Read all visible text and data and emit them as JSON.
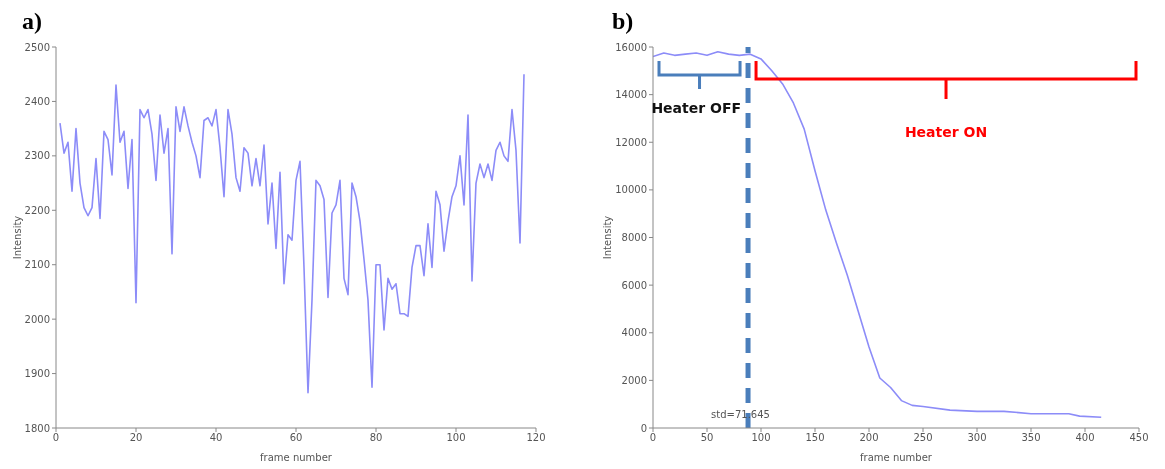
{
  "chart_data": [
    {
      "type": "line",
      "title": "a)",
      "xlabel": "frame number",
      "ylabel": "Intensity",
      "xlim": [
        0,
        120
      ],
      "xticks": [
        0,
        20,
        40,
        60,
        80,
        100,
        120
      ],
      "ylim": [
        1800,
        2500
      ],
      "yticks": [
        1800,
        1900,
        2000,
        2100,
        2200,
        2300,
        2400,
        2500
      ],
      "x": [
        1,
        2,
        3,
        4,
        5,
        6,
        7,
        8,
        9,
        10,
        11,
        12,
        13,
        14,
        15,
        16,
        17,
        18,
        19,
        20,
        21,
        22,
        23,
        24,
        25,
        26,
        27,
        28,
        29,
        30,
        31,
        32,
        33,
        34,
        35,
        36,
        37,
        38,
        39,
        40,
        41,
        42,
        43,
        44,
        45,
        46,
        47,
        48,
        49,
        50,
        51,
        52,
        53,
        54,
        55,
        56,
        57,
        58,
        59,
        60,
        61,
        62,
        63,
        64,
        65,
        66,
        67,
        68,
        69,
        70,
        71,
        72,
        73,
        74,
        75,
        76,
        77,
        78,
        79,
        80,
        81,
        82,
        83,
        84,
        85,
        86,
        87,
        88,
        89,
        90,
        91,
        92,
        93,
        94,
        95,
        96,
        97,
        98,
        99,
        100,
        101,
        102,
        103,
        104,
        105,
        106,
        107,
        108,
        109,
        110,
        111,
        112,
        113,
        114,
        115,
        116,
        117
      ],
      "series": [
        {
          "color": "#8c8cf8",
          "values": [
            2360,
            2305,
            2325,
            2235,
            2350,
            2250,
            2205,
            2190,
            2205,
            2295,
            2185,
            2345,
            2330,
            2265,
            2430,
            2325,
            2345,
            2240,
            2330,
            2030,
            2385,
            2370,
            2385,
            2340,
            2255,
            2375,
            2305,
            2350,
            2120,
            2390,
            2345,
            2390,
            2355,
            2325,
            2300,
            2260,
            2365,
            2370,
            2355,
            2385,
            2315,
            2225,
            2385,
            2340,
            2260,
            2235,
            2315,
            2305,
            2245,
            2295,
            2245,
            2320,
            2175,
            2250,
            2130,
            2270,
            2065,
            2155,
            2145,
            2255,
            2290,
            2095,
            1865,
            2035,
            2255,
            2245,
            2220,
            2040,
            2195,
            2210,
            2255,
            2075,
            2045,
            2250,
            2225,
            2180,
            2110,
            2035,
            1875,
            2100,
            2100,
            1980,
            2075,
            2055,
            2065,
            2010,
            2010,
            2005,
            2095,
            2135,
            2135,
            2080,
            2175,
            2095,
            2235,
            2210,
            2125,
            2180,
            2225,
            2245,
            2300,
            2210,
            2375,
            2070,
            2250,
            2285,
            2260,
            2285,
            2255,
            2310,
            2325,
            2300,
            2290,
            2385,
            2310,
            2140,
            2450
          ]
        }
      ]
    },
    {
      "type": "line",
      "title": "b)",
      "xlabel": "frame number",
      "ylabel": "Intensity",
      "xlim": [
        0,
        450
      ],
      "xticks": [
        0,
        50,
        100,
        150,
        200,
        250,
        300,
        350,
        400,
        450
      ],
      "ylim": [
        0,
        16000
      ],
      "yticks": [
        0,
        2000,
        4000,
        6000,
        8000,
        10000,
        12000,
        14000,
        16000
      ],
      "x": [
        0,
        10,
        20,
        30,
        40,
        50,
        60,
        70,
        80,
        90,
        100,
        110,
        120,
        130,
        140,
        150,
        160,
        170,
        180,
        190,
        200,
        210,
        220,
        230,
        240,
        250,
        275,
        300,
        325,
        350,
        375,
        385,
        395,
        415
      ],
      "series": [
        {
          "color": "#8c8cf8",
          "values": [
            15600,
            15750,
            15650,
            15700,
            15750,
            15650,
            15800,
            15700,
            15650,
            15700,
            15500,
            15000,
            14450,
            13650,
            12550,
            10800,
            9150,
            7750,
            6400,
            4900,
            3400,
            2100,
            1700,
            1150,
            950,
            900,
            750,
            700,
            700,
            600,
            600,
            600,
            500,
            450
          ]
        }
      ],
      "ref_lines": [
        {
          "axis": "x",
          "value": 88,
          "color": "#4a7ebb",
          "line_style": "dashed"
        }
      ],
      "annotations": [
        "Heater OFF",
        "Heater ON",
        "std=71.645"
      ]
    }
  ]
}
